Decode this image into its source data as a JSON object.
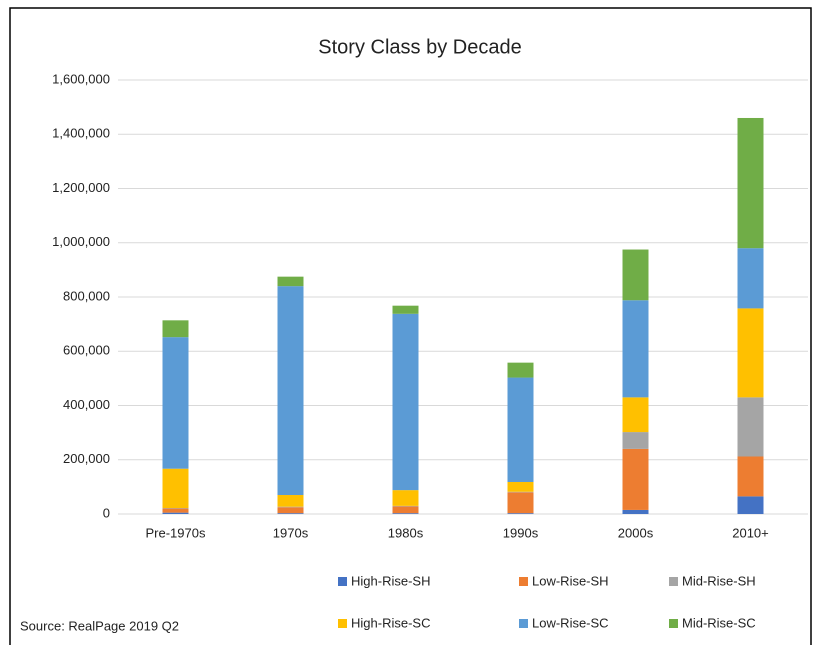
{
  "chart_data": {
    "type": "stacked_bar",
    "title": "Story Class by Decade",
    "categories": [
      "Pre-1970s",
      "1970s",
      "1980s",
      "1990s",
      "2000s",
      "2010+"
    ],
    "series": [
      {
        "name": "High-Rise-SH",
        "color": "#4472c4",
        "values": [
          5000,
          3000,
          3000,
          3000,
          15000,
          65000
        ]
      },
      {
        "name": "Low-Rise-SH",
        "color": "#ed7d31",
        "values": [
          15000,
          22000,
          25000,
          77000,
          225000,
          147000
        ]
      },
      {
        "name": "Mid-Rise-SH",
        "color": "#a5a5a5",
        "values": [
          2000,
          2000,
          2000,
          2000,
          62000,
          218000
        ]
      },
      {
        "name": "High-Rise-SC",
        "color": "#ffc000",
        "values": [
          145000,
          43000,
          58000,
          36000,
          128000,
          328000
        ]
      },
      {
        "name": "Low-Rise-SC",
        "color": "#5b9bd5",
        "values": [
          485000,
          770000,
          650000,
          385000,
          358000,
          222000
        ]
      },
      {
        "name": "Mid-Rise-SC",
        "color": "#70ad47",
        "values": [
          62000,
          35000,
          30000,
          55000,
          187000,
          480000
        ]
      }
    ],
    "ylim": [
      0,
      1600000
    ],
    "yticks": [
      0,
      {
        "value": 200000,
        "label": "200,000"
      },
      {
        "value": 400000,
        "label": "400,000"
      },
      {
        "value": 600000,
        "label": "600,000"
      },
      {
        "value": 800000,
        "label": "800,000"
      },
      {
        "value": 1000000,
        "label": "1,000,000"
      },
      {
        "value": 1200000,
        "label": "1,200,000"
      },
      {
        "value": 1400000,
        "label": "1,400,000"
      },
      {
        "value": 1600000,
        "label": "1,600,000"
      }
    ],
    "grid": true,
    "legend": "bottom",
    "source": "Source: RealPage 2019 Q2"
  }
}
